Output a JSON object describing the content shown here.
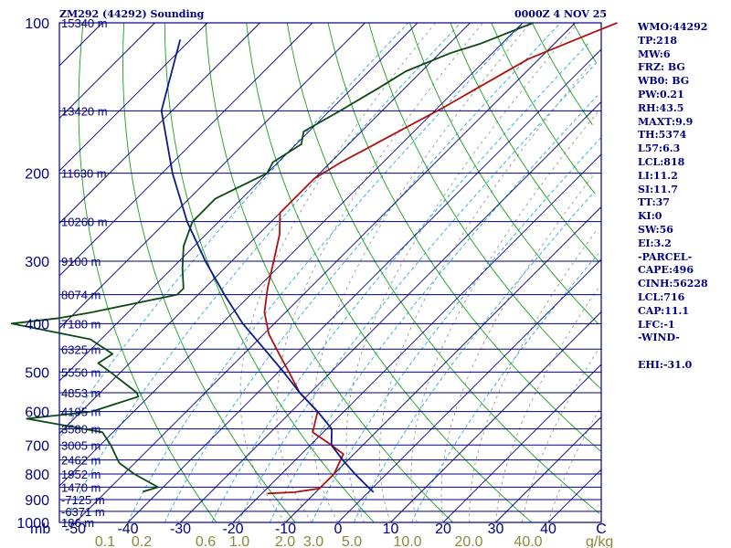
{
  "header": {
    "station": "ZM292 (44292) Sounding",
    "time": "0000Z  4 NOV 25"
  },
  "stats": [
    "WMO:44292",
    "TP:218",
    "MW:6",
    "FRZ: BG",
    "WB0: BG",
    "PW:0.21",
    "RH:43.5",
    "MAXT:9.9",
    "TH:5374",
    "L57:6.3",
    "LCL:818",
    "LI:11.2",
    "SI:11.7",
    "TT:37",
    "KI:0",
    "SW:56",
    "EI:3.2",
    "-PARCEL-",
    "CAPE:496",
    "CINH:56228",
    "LCL:716",
    "CAP:11.1",
    "LFC:-1",
    "-WIND-",
    "",
    "EHI:-31.0"
  ],
  "chart_data": {
    "type": "line",
    "title": "ZM292 (44292) Sounding",
    "ylabel": "mb",
    "xlabel": "C",
    "pressure_levels": [
      100,
      150,
      200,
      250,
      300,
      350,
      400,
      450,
      500,
      550,
      600,
      650,
      700,
      750,
      800,
      850,
      900,
      950,
      1000
    ],
    "pressure_tick_labels": [
      "100",
      "200",
      "300",
      "400",
      "500",
      "600",
      "700",
      "800",
      "900",
      "1000"
    ],
    "height_labels": [
      {
        "p": 100,
        "label": "15340 m"
      },
      {
        "p": 150,
        "label": "13420 m"
      },
      {
        "p": 200,
        "label": "11630 m"
      },
      {
        "p": 250,
        "label": "10260 m"
      },
      {
        "p": 300,
        "label": "9100 m"
      },
      {
        "p": 350,
        "label": "8074 m"
      },
      {
        "p": 400,
        "label": "7180 m"
      },
      {
        "p": 450,
        "label": "6325 m"
      },
      {
        "p": 500,
        "label": "5550 m"
      },
      {
        "p": 550,
        "label": "4853 m"
      },
      {
        "p": 600,
        "label": "4195 m"
      },
      {
        "p": 650,
        "label": "3580 m"
      },
      {
        "p": 700,
        "label": "3005 m"
      },
      {
        "p": 750,
        "label": "2462 m"
      },
      {
        "p": 800,
        "label": "1952 m"
      },
      {
        "p": 850,
        "label": "1470 m"
      },
      {
        "p": 900,
        "label": "-7125 m"
      },
      {
        "p": 950,
        "label": "-6371 m"
      },
      {
        "p": 1000,
        "label": "186 m"
      }
    ],
    "x_ticks": [
      -50,
      -40,
      -30,
      -20,
      -10,
      0,
      10,
      20,
      30,
      40
    ],
    "x_tick_labels": [
      "-50",
      "-40",
      "-30",
      "-20",
      "-10",
      "0",
      "10",
      "20",
      "30",
      "40"
    ],
    "x_unit": "C",
    "mixing_ratio_labels": [
      "0.1",
      "0.2",
      "0.6",
      "1.0",
      "2.0",
      "3.0",
      "5.0",
      "10.0",
      "20.0",
      "40.0"
    ],
    "mixing_ratio_unit": "g/kg",
    "series": [
      {
        "role": "temperature",
        "color": "#b01010",
        "points": [
          {
            "p": 100,
            "t": -42
          },
          {
            "p": 105,
            "t": -45
          },
          {
            "p": 118,
            "t": -52
          },
          {
            "p": 130,
            "t": -55
          },
          {
            "p": 148,
            "t": -59
          },
          {
            "p": 170,
            "t": -64
          },
          {
            "p": 180,
            "t": -66
          },
          {
            "p": 190,
            "t": -68
          },
          {
            "p": 205,
            "t": -70
          },
          {
            "p": 222,
            "t": -70
          },
          {
            "p": 240,
            "t": -70
          },
          {
            "p": 265,
            "t": -66
          },
          {
            "p": 300,
            "t": -62
          },
          {
            "p": 340,
            "t": -58
          },
          {
            "p": 380,
            "t": -54
          },
          {
            "p": 420,
            "t": -49
          },
          {
            "p": 455,
            "t": -44
          },
          {
            "p": 500,
            "t": -38
          },
          {
            "p": 550,
            "t": -32
          },
          {
            "p": 600,
            "t": -25
          },
          {
            "p": 660,
            "t": -22
          },
          {
            "p": 700,
            "t": -16
          },
          {
            "p": 730,
            "t": -12
          },
          {
            "p": 800,
            "t": -10
          },
          {
            "p": 855,
            "t": -10
          },
          {
            "p": 870,
            "t": -14
          },
          {
            "p": 875,
            "t": -19
          }
        ]
      },
      {
        "role": "dewpoint",
        "color": "#0a4a12",
        "points": [
          {
            "p": 100,
            "t": -58
          },
          {
            "p": 110,
            "t": -64
          },
          {
            "p": 115,
            "t": -68
          },
          {
            "p": 125,
            "t": -73
          },
          {
            "p": 135,
            "t": -75
          },
          {
            "p": 150,
            "t": -78
          },
          {
            "p": 165,
            "t": -81
          },
          {
            "p": 175,
            "t": -79
          },
          {
            "p": 190,
            "t": -81
          },
          {
            "p": 200,
            "t": -80
          },
          {
            "p": 225,
            "t": -85
          },
          {
            "p": 250,
            "t": -85
          },
          {
            "p": 280,
            "t": -82
          },
          {
            "p": 310,
            "t": -78
          },
          {
            "p": 340,
            "t": -74
          },
          {
            "p": 350,
            "t": -74
          },
          {
            "p": 380,
            "t": -87
          },
          {
            "p": 390,
            "t": -92
          },
          {
            "p": 400,
            "t": -100
          },
          {
            "p": 430,
            "t": -82
          },
          {
            "p": 460,
            "t": -75
          },
          {
            "p": 480,
            "t": -76
          },
          {
            "p": 500,
            "t": -72
          },
          {
            "p": 550,
            "t": -63
          },
          {
            "p": 560,
            "t": -62
          },
          {
            "p": 600,
            "t": -68
          },
          {
            "p": 620,
            "t": -79
          },
          {
            "p": 660,
            "t": -62
          },
          {
            "p": 700,
            "t": -58
          },
          {
            "p": 760,
            "t": -53
          },
          {
            "p": 800,
            "t": -48
          },
          {
            "p": 850,
            "t": -41
          },
          {
            "p": 868,
            "t": -43
          }
        ]
      },
      {
        "role": "parcel",
        "color": "#0a1a8a",
        "points": [
          {
            "p": 108,
            "t": -122
          },
          {
            "p": 150,
            "t": -112
          },
          {
            "p": 200,
            "t": -98
          },
          {
            "p": 250,
            "t": -86
          },
          {
            "p": 300,
            "t": -75
          },
          {
            "p": 350,
            "t": -65
          },
          {
            "p": 400,
            "t": -56
          },
          {
            "p": 450,
            "t": -47
          },
          {
            "p": 500,
            "t": -39
          },
          {
            "p": 550,
            "t": -32
          },
          {
            "p": 600,
            "t": -25
          },
          {
            "p": 650,
            "t": -19
          },
          {
            "p": 700,
            "t": -16
          },
          {
            "p": 750,
            "t": -11
          },
          {
            "p": 800,
            "t": -6
          },
          {
            "p": 850,
            "t": -1
          },
          {
            "p": 870,
            "t": 1
          }
        ]
      }
    ],
    "grid": true
  }
}
